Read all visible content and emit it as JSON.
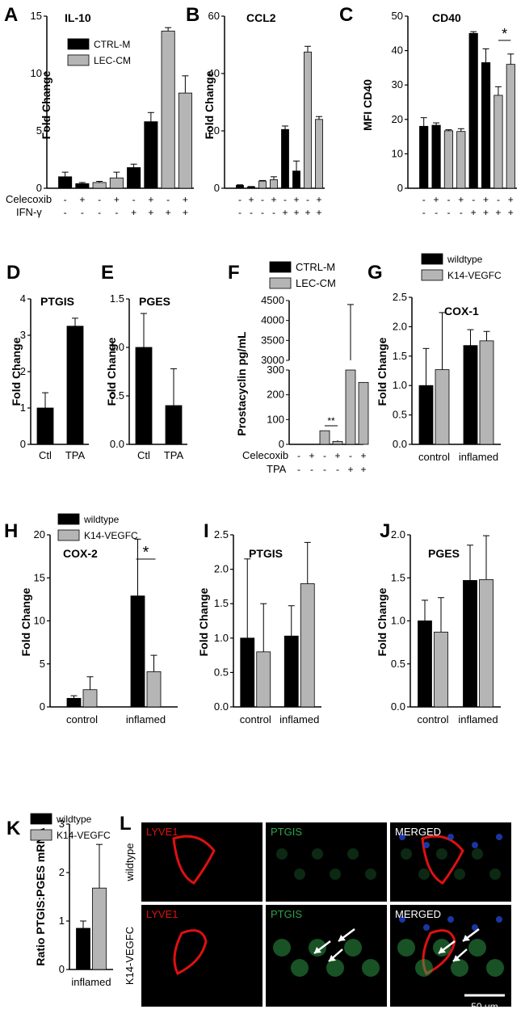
{
  "colors": {
    "black": "#000000",
    "grey": "#b5b5b5",
    "panel_bg": "#000000",
    "lyve": "#e01010",
    "ptgis": "#2fa34a",
    "nucleus": "#2244cc",
    "label_white": "#ffffff"
  },
  "legends": {
    "ctrl_lec": [
      "CTRL-M",
      "LEC-CM"
    ],
    "wt_k14": [
      "wildtype",
      "K14-VEGFC"
    ]
  },
  "treatments": {
    "celecoxib_label": "Celecoxib",
    "ifn_label": "IFN-γ",
    "tpa_label": "TPA",
    "celecoxib": [
      "-",
      "+",
      "-",
      "+",
      "-",
      "+",
      "-",
      "+"
    ],
    "ifn": [
      "-",
      "-",
      "-",
      "-",
      "+",
      "+",
      "+",
      "+"
    ],
    "f_celecoxib": [
      "-",
      "+",
      "-",
      "+",
      "-",
      "+"
    ],
    "f_tpa": [
      "-",
      "-",
      "-",
      "-",
      "+",
      "+"
    ]
  },
  "chart_data": [
    {
      "panel": "A",
      "type": "bar",
      "title": "IL-10",
      "ylabel": "Fold Change",
      "ylim": [
        0,
        15
      ],
      "yticks": [
        "0",
        "5",
        "10",
        "15"
      ],
      "values": [
        1.0,
        0.4,
        0.5,
        0.9,
        1.8,
        5.8,
        13.7,
        8.3
      ],
      "errors": [
        0.4,
        0.1,
        0.1,
        0.5,
        0.3,
        0.8,
        0.3,
        1.5
      ],
      "colors": [
        "k",
        "k",
        "g",
        "g",
        "k",
        "k",
        "g",
        "g"
      ]
    },
    {
      "panel": "B",
      "type": "bar",
      "title": "CCL2",
      "ylabel": "Fold Change",
      "ylim": [
        0,
        60
      ],
      "yticks": [
        "0",
        "20",
        "40",
        "60"
      ],
      "values": [
        1.0,
        0.5,
        2.5,
        3.0,
        20.5,
        6.0,
        47.5,
        24.0
      ],
      "errors": [
        0.2,
        0.1,
        0.2,
        1.0,
        1.2,
        3.5,
        2.0,
        1.0
      ],
      "colors": [
        "k",
        "k",
        "g",
        "g",
        "k",
        "k",
        "g",
        "g"
      ]
    },
    {
      "panel": "C",
      "type": "bar",
      "title": "CD40",
      "ylabel": "MFI CD40",
      "ylim": [
        0,
        50
      ],
      "yticks": [
        "0",
        "10",
        "20",
        "30",
        "40",
        "50"
      ],
      "values": [
        18.0,
        18.3,
        16.7,
        16.5,
        45.0,
        36.5,
        27.0,
        36.0
      ],
      "errors": [
        2.5,
        0.7,
        0.3,
        0.8,
        0.5,
        4.0,
        2.5,
        3.0
      ],
      "colors": [
        "k",
        "k",
        "g",
        "g",
        "k",
        "k",
        "g",
        "g"
      ],
      "annotation": "*"
    },
    {
      "panel": "D",
      "type": "bar",
      "title": "PTGIS",
      "ylabel": "Fold Change",
      "ylim": [
        0,
        4
      ],
      "yticks": [
        "0",
        "1",
        "2",
        "3",
        "4"
      ],
      "categories": [
        "Ctl",
        "TPA"
      ],
      "values": [
        1.0,
        3.25
      ],
      "errors": [
        0.42,
        0.22
      ],
      "colors": [
        "k",
        "k"
      ]
    },
    {
      "panel": "E",
      "type": "bar",
      "title": "PGES",
      "ylabel": "Fold Change",
      "ylim": [
        0,
        1.5
      ],
      "yticks": [
        "0.0",
        "0.5",
        "1.0",
        "1.5"
      ],
      "categories": [
        "Ctl",
        "TPA"
      ],
      "values": [
        1.0,
        0.4
      ],
      "errors": [
        0.35,
        0.38
      ],
      "colors": [
        "k",
        "k"
      ]
    },
    {
      "panel": "F",
      "type": "bar",
      "title": "",
      "ylabel": "Prostacyclin pg/mL",
      "yticks_lower": [
        "0",
        "100",
        "200",
        "300"
      ],
      "yticks_upper": [
        "3000",
        "3500",
        "4000",
        "4500"
      ],
      "values": [
        0,
        0,
        55,
        12,
        3000,
        250
      ],
      "errors": [
        0,
        0,
        0,
        4,
        1400,
        0
      ],
      "colors": [
        "k",
        "k",
        "g",
        "g",
        "g",
        "g"
      ],
      "annotation": "**"
    },
    {
      "panel": "G",
      "type": "bar",
      "title": "COX-1",
      "ylabel": "Fold Change",
      "ylim": [
        0,
        2.5
      ],
      "yticks": [
        "0.0",
        "0.5",
        "1.0",
        "1.5",
        "2.0",
        "2.5"
      ],
      "categories": [
        "control",
        "inflamed"
      ],
      "series": [
        {
          "name": "wildtype",
          "values": [
            1.0,
            1.68
          ],
          "errors": [
            0.63,
            0.27
          ]
        },
        {
          "name": "K14-VEGFC",
          "values": [
            1.27,
            1.76
          ],
          "errors": [
            0.97,
            0.16
          ]
        }
      ]
    },
    {
      "panel": "H",
      "type": "bar",
      "title": "COX-2",
      "ylabel": "Fold Change",
      "ylim": [
        0,
        20
      ],
      "yticks": [
        "0",
        "5",
        "10",
        "15",
        "20"
      ],
      "categories": [
        "control",
        "inflamed"
      ],
      "series": [
        {
          "name": "wildtype",
          "values": [
            1.0,
            12.9
          ],
          "errors": [
            0.3,
            6.6
          ]
        },
        {
          "name": "K14-VEGFC",
          "values": [
            2.0,
            4.1
          ],
          "errors": [
            1.5,
            1.9
          ]
        }
      ],
      "annotation": "*"
    },
    {
      "panel": "I",
      "type": "bar",
      "title": "PTGIS",
      "ylabel": "Fold Change",
      "ylim": [
        0,
        2.5
      ],
      "yticks": [
        "0.0",
        "0.5",
        "1.0",
        "1.5",
        "2.0",
        "2.5"
      ],
      "categories": [
        "control",
        "inflamed"
      ],
      "series": [
        {
          "name": "wildtype",
          "values": [
            1.0,
            1.03
          ],
          "errors": [
            1.15,
            0.44
          ]
        },
        {
          "name": "K14-VEGFC",
          "values": [
            0.8,
            1.79
          ],
          "errors": [
            0.7,
            0.6
          ]
        }
      ]
    },
    {
      "panel": "J",
      "type": "bar",
      "title": "PGES",
      "ylabel": "Fold Change",
      "ylim": [
        0,
        2.0
      ],
      "yticks": [
        "0.0",
        "0.5",
        "1.0",
        "1.5",
        "2.0"
      ],
      "categories": [
        "control",
        "inflamed"
      ],
      "series": [
        {
          "name": "wildtype",
          "values": [
            1.0,
            1.47
          ],
          "errors": [
            0.24,
            0.41
          ]
        },
        {
          "name": "K14-VEGFC",
          "values": [
            0.87,
            1.48
          ],
          "errors": [
            0.4,
            0.51
          ]
        }
      ]
    },
    {
      "panel": "K",
      "type": "bar",
      "title": "",
      "ylabel": "Ratio PTGIS:PGES mRNA",
      "ylim": [
        0,
        3
      ],
      "yticks": [
        "0",
        "1",
        "2",
        "3"
      ],
      "categories": [
        "inflamed"
      ],
      "series": [
        {
          "name": "wildtype",
          "values": [
            0.85
          ],
          "errors": [
            0.15
          ]
        },
        {
          "name": "K14-VEGFC",
          "values": [
            1.68
          ],
          "errors": [
            0.9
          ]
        }
      ]
    }
  ],
  "micrograph": {
    "panel": "L",
    "row_labels": [
      "wildtype",
      "K14-VEGFC"
    ],
    "column_labels": [
      "LYVE1",
      "PTGIS",
      "MERGED"
    ],
    "scale_bar": "50 μm"
  }
}
